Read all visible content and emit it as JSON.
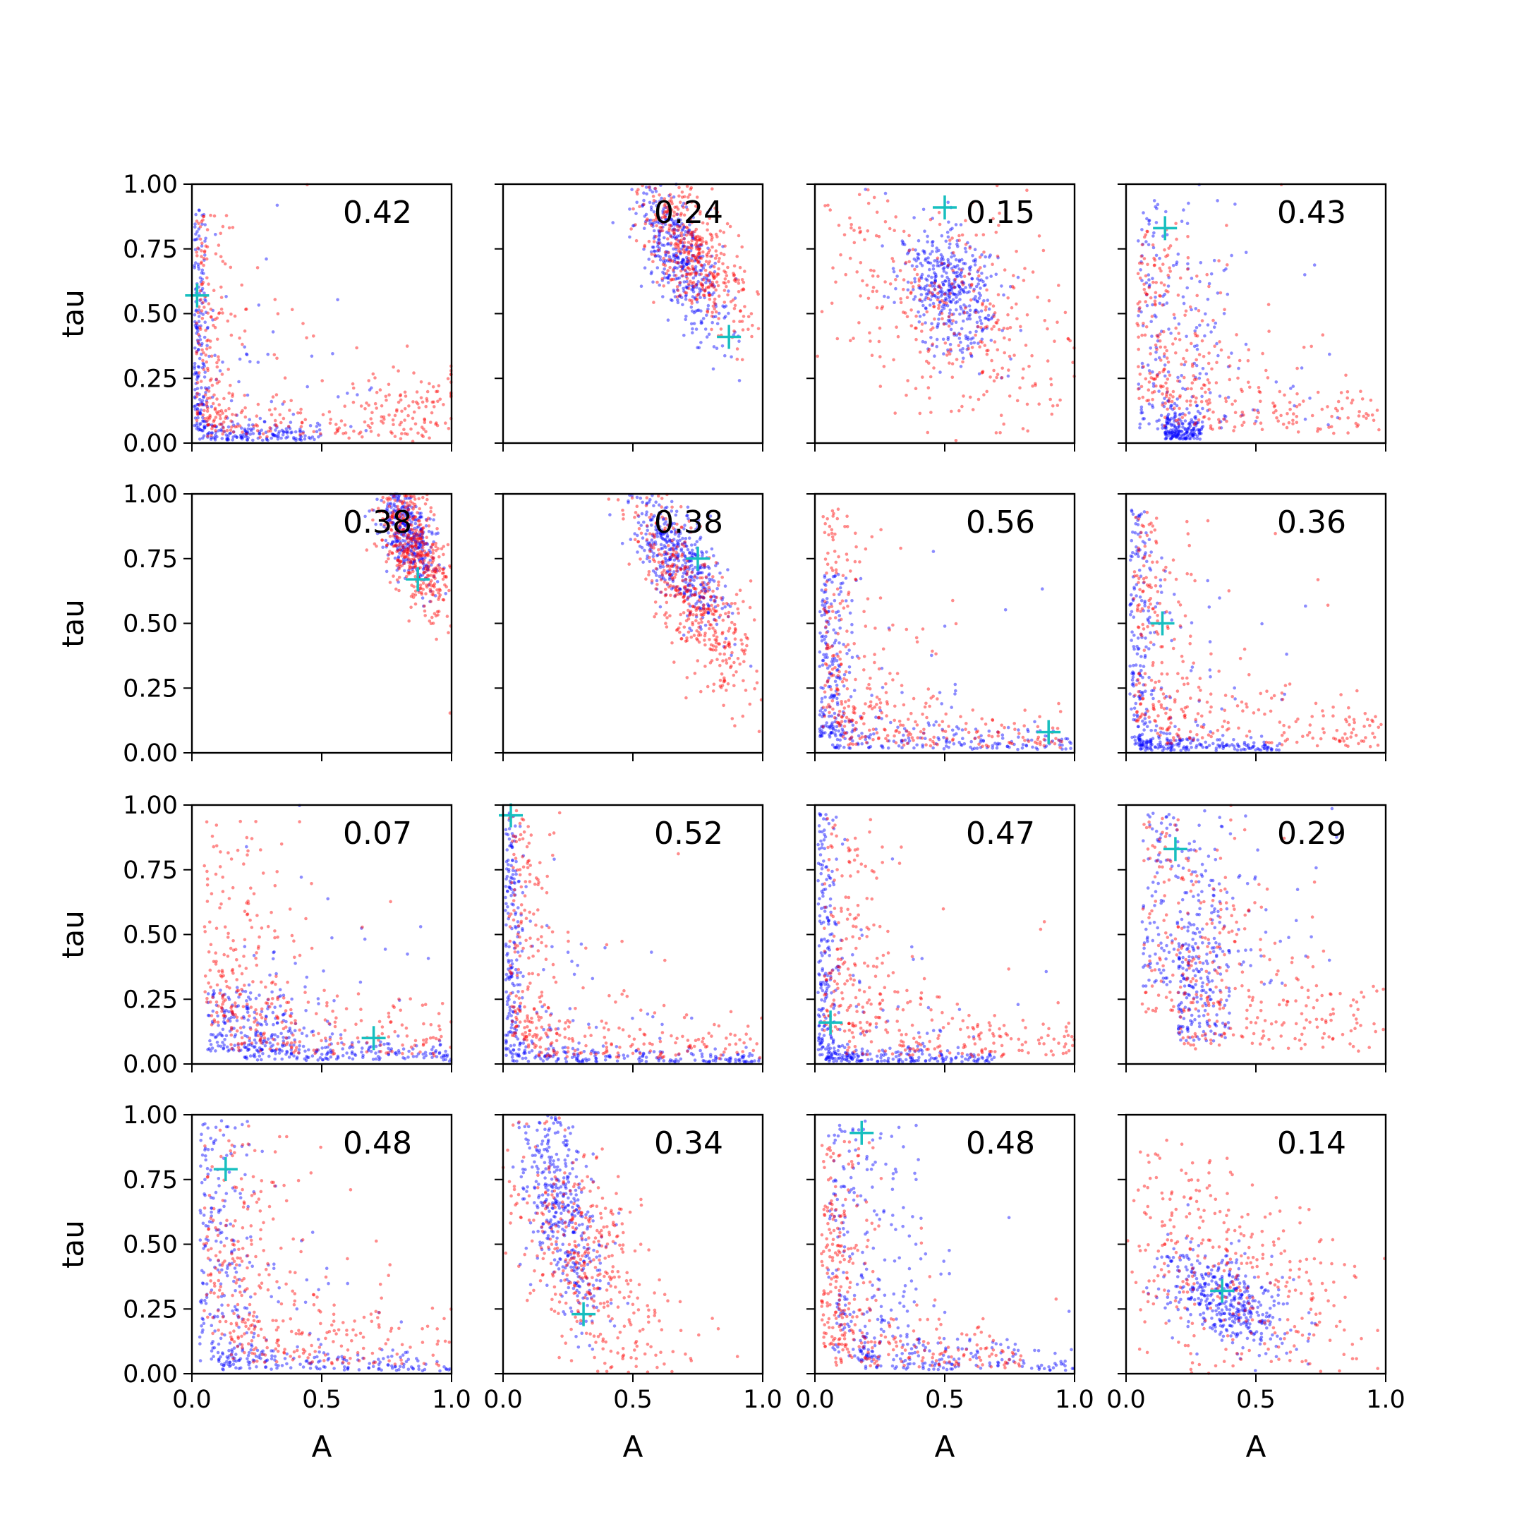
{
  "chart_data": {
    "type": "scatter",
    "layout": "4x4 grid of scatter panels, shared axes",
    "xlabel": "A",
    "ylabel": "tau",
    "xlim": [
      0,
      1
    ],
    "ylim": [
      0,
      1
    ],
    "x_ticks": [
      "0.0",
      "0.5",
      "1.0"
    ],
    "y_ticks": [
      "0.00",
      "0.25",
      "0.50",
      "0.75",
      "1.00"
    ],
    "grid": false,
    "legend": "none",
    "colors": {
      "series_a": "#ff0000",
      "series_b": "#0000ff",
      "marker": "#17bfbf"
    },
    "panels": [
      {
        "annotation": "0.42",
        "marker": [
          0.02,
          0.57
        ],
        "shape": "L",
        "blue": {
          "corner": [
            0.03,
            0.04
          ],
          "armx": 0.5,
          "army": 0.9,
          "n": 360
        },
        "red": {
          "corner": [
            0.06,
            0.08
          ],
          "armx": 0.95,
          "army": 0.9,
          "n": 300,
          "blob": [
            0.82,
            0.16,
            0.12,
            0.08
          ]
        }
      },
      {
        "annotation": "0.24",
        "marker": [
          0.87,
          0.41
        ],
        "shape": "blob",
        "blue": {
          "cx": 0.68,
          "cy": 0.72,
          "sx": 0.09,
          "sy": 0.16,
          "rho": -0.75,
          "n": 420
        },
        "red": {
          "cx": 0.74,
          "cy": 0.72,
          "sx": 0.1,
          "sy": 0.15,
          "rho": -0.6,
          "n": 420
        }
      },
      {
        "annotation": "0.15",
        "marker": [
          0.5,
          0.91
        ],
        "shape": "blob",
        "blue": {
          "cx": 0.52,
          "cy": 0.6,
          "sx": 0.1,
          "sy": 0.13,
          "rho": -0.4,
          "n": 420
        },
        "red": {
          "cx": 0.5,
          "cy": 0.5,
          "sx": 0.28,
          "sy": 0.28,
          "rho": -0.5,
          "n": 380
        }
      },
      {
        "annotation": "0.43",
        "marker": [
          0.15,
          0.83
        ],
        "shape": "L",
        "blue": {
          "corner": [
            0.15,
            0.05
          ],
          "armx": 0.3,
          "army": 0.95,
          "n": 380
        },
        "red": {
          "corner": [
            0.14,
            0.16
          ],
          "armx": 0.98,
          "army": 0.85,
          "n": 340
        }
      },
      {
        "annotation": "0.38",
        "marker": [
          0.87,
          0.67
        ],
        "shape": "blob",
        "blue": {
          "cx": 0.83,
          "cy": 0.85,
          "sx": 0.06,
          "sy": 0.1,
          "rho": -0.6,
          "n": 360
        },
        "red": {
          "cx": 0.86,
          "cy": 0.78,
          "sx": 0.07,
          "sy": 0.13,
          "rho": -0.5,
          "n": 420
        }
      },
      {
        "annotation": "0.38",
        "marker": [
          0.75,
          0.75
        ],
        "shape": "blob",
        "blue": {
          "cx": 0.68,
          "cy": 0.75,
          "sx": 0.09,
          "sy": 0.13,
          "rho": -0.7,
          "n": 420
        },
        "red": {
          "cx": 0.73,
          "cy": 0.6,
          "sx": 0.13,
          "sy": 0.2,
          "rho": -0.8,
          "n": 420
        }
      },
      {
        "annotation": "0.56",
        "marker": [
          0.9,
          0.08
        ],
        "shape": "L",
        "blue": {
          "corner": [
            0.06,
            0.06
          ],
          "armx": 1.0,
          "army": 0.7,
          "n": 380
        },
        "red": {
          "corner": [
            0.1,
            0.1
          ],
          "armx": 1.0,
          "army": 0.95,
          "n": 340
        }
      },
      {
        "annotation": "0.36",
        "marker": [
          0.14,
          0.5
        ],
        "shape": "L",
        "blue": {
          "corner": [
            0.05,
            0.03
          ],
          "armx": 0.6,
          "army": 0.95,
          "n": 380
        },
        "red": {
          "corner": [
            0.1,
            0.12
          ],
          "armx": 1.0,
          "army": 0.95,
          "n": 320
        }
      },
      {
        "annotation": "0.07",
        "marker": [
          0.7,
          0.1
        ],
        "shape": "L",
        "blue": {
          "corner": [
            0.2,
            0.05
          ],
          "armx": 1.0,
          "army": 0.3,
          "n": 400
        },
        "red": {
          "corner": [
            0.15,
            0.15
          ],
          "armx": 1.0,
          "army": 0.95,
          "n": 340
        }
      },
      {
        "annotation": "0.52",
        "marker": [
          0.03,
          0.96
        ],
        "shape": "L",
        "blue": {
          "corner": [
            0.03,
            0.03
          ],
          "armx": 1.0,
          "army": 0.98,
          "n": 400
        },
        "red": {
          "corner": [
            0.08,
            0.1
          ],
          "armx": 1.0,
          "army": 0.98,
          "n": 330
        }
      },
      {
        "annotation": "0.47",
        "marker": [
          0.06,
          0.16
        ],
        "shape": "L",
        "blue": {
          "corner": [
            0.04,
            0.03
          ],
          "armx": 0.7,
          "army": 0.98,
          "n": 400
        },
        "red": {
          "corner": [
            0.12,
            0.12
          ],
          "armx": 1.0,
          "army": 0.95,
          "n": 340
        }
      },
      {
        "annotation": "0.29",
        "marker": [
          0.19,
          0.83
        ],
        "shape": "L",
        "blue": {
          "corner": [
            0.2,
            0.3
          ],
          "armx": 0.4,
          "army": 0.98,
          "n": 380
        },
        "red": {
          "corner": [
            0.2,
            0.2
          ],
          "armx": 1.0,
          "army": 0.95,
          "n": 340
        }
      },
      {
        "annotation": "0.48",
        "marker": [
          0.13,
          0.79
        ],
        "shape": "L",
        "blue": {
          "corner": [
            0.1,
            0.05
          ],
          "armx": 1.0,
          "army": 0.98,
          "n": 380
        },
        "red": {
          "corner": [
            0.15,
            0.15
          ],
          "armx": 1.0,
          "army": 0.95,
          "n": 340
        }
      },
      {
        "annotation": "0.34",
        "marker": [
          0.31,
          0.23
        ],
        "shape": "blob",
        "blue": {
          "cx": 0.23,
          "cy": 0.62,
          "sx": 0.08,
          "sy": 0.22,
          "rho": -0.6,
          "n": 420
        },
        "red": {
          "cx": 0.33,
          "cy": 0.42,
          "sx": 0.17,
          "sy": 0.25,
          "rho": -0.6,
          "n": 420
        }
      },
      {
        "annotation": "0.48",
        "marker": [
          0.18,
          0.93
        ],
        "shape": "L",
        "blue": {
          "corner": [
            0.17,
            0.06
          ],
          "armx": 1.0,
          "army": 0.98,
          "n": 380
        },
        "red": {
          "corner": [
            0.08,
            0.1
          ],
          "armx": 0.8,
          "army": 0.9,
          "n": 340
        }
      },
      {
        "annotation": "0.14",
        "marker": [
          0.37,
          0.32
        ],
        "shape": "blob",
        "blue": {
          "cx": 0.38,
          "cy": 0.28,
          "sx": 0.12,
          "sy": 0.1,
          "rho": -0.5,
          "n": 420
        },
        "red": {
          "cx": 0.38,
          "cy": 0.38,
          "sx": 0.3,
          "sy": 0.28,
          "rho": -0.55,
          "n": 400
        }
      }
    ]
  }
}
